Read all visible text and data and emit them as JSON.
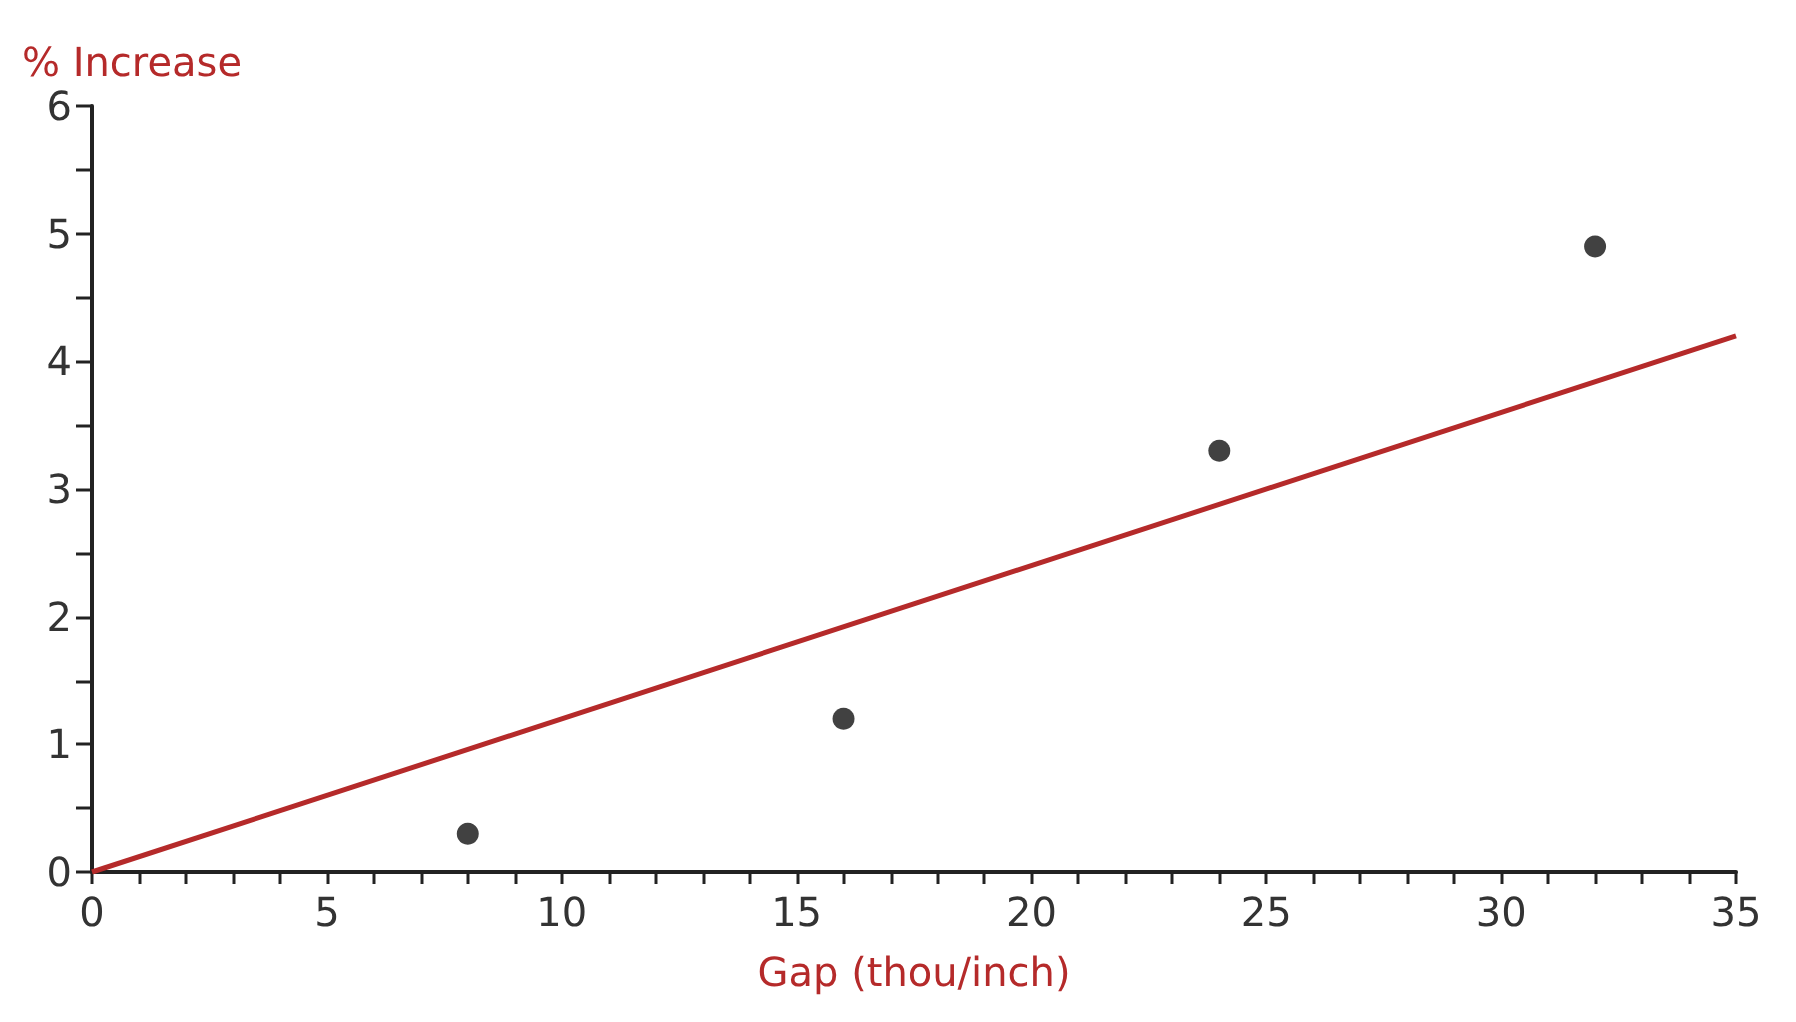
{
  "chart_data": {
    "type": "scatter",
    "xlabel": "Gap (thou/inch)",
    "ylabel": "% Increase",
    "marker": "circle",
    "grid": false,
    "series": [
      {
        "color": "#111111",
        "x": [
          8,
          16,
          24,
          32
        ],
        "values": [
          0.3,
          1.2,
          3.3,
          4.9
        ]
      },
      {
        "type": "line",
        "color": "#b52a2a",
        "x": [
          0,
          35
        ],
        "values": [
          0,
          4.2
        ],
        "marker": "none",
        "line_style": "solid"
      }
    ],
    "xlim": [
      0,
      35
    ],
    "ylim": [
      0,
      6
    ],
    "xticks": [
      0,
      {
        "value": 1,
        "label": null
      },
      {
        "value": 2,
        "label": null
      },
      {
        "value": 3,
        "label": null
      },
      {
        "value": 4,
        "label": null
      },
      5,
      {
        "value": 6,
        "label": null
      },
      {
        "value": 7,
        "label": null
      },
      {
        "value": 8,
        "label": null
      },
      {
        "value": 9,
        "label": null
      },
      10,
      {
        "value": 11,
        "label": null
      },
      {
        "value": 12,
        "label": null
      },
      {
        "value": 13,
        "label": null
      },
      {
        "value": 14,
        "label": null
      },
      15,
      {
        "value": 16,
        "label": null
      },
      {
        "value": 17,
        "label": null
      },
      {
        "value": 18,
        "label": null
      },
      {
        "value": 19,
        "label": null
      },
      20,
      {
        "value": 21,
        "label": null
      },
      {
        "value": 22,
        "label": null
      },
      {
        "value": 23,
        "label": null
      },
      {
        "value": 24,
        "label": null
      },
      25,
      {
        "value": 26,
        "label": null
      },
      {
        "value": 27,
        "label": null
      },
      {
        "value": 28,
        "label": null
      },
      {
        "value": 29,
        "label": null
      },
      30,
      {
        "value": 31,
        "label": null
      },
      {
        "value": 32,
        "label": null
      },
      {
        "value": 33,
        "label": null
      },
      {
        "value": 34,
        "label": null
      },
      35
    ],
    "yticks": [
      0,
      {
        "value": 0.5,
        "label": null
      },
      1,
      {
        "value": 1.5,
        "label": null
      },
      2,
      {
        "value": 2.5,
        "label": null
      },
      3,
      {
        "value": 3.5,
        "label": null
      },
      4,
      {
        "value": 4.5,
        "label": null
      },
      5,
      {
        "value": 5.5,
        "label": null
      },
      6
    ]
  }
}
